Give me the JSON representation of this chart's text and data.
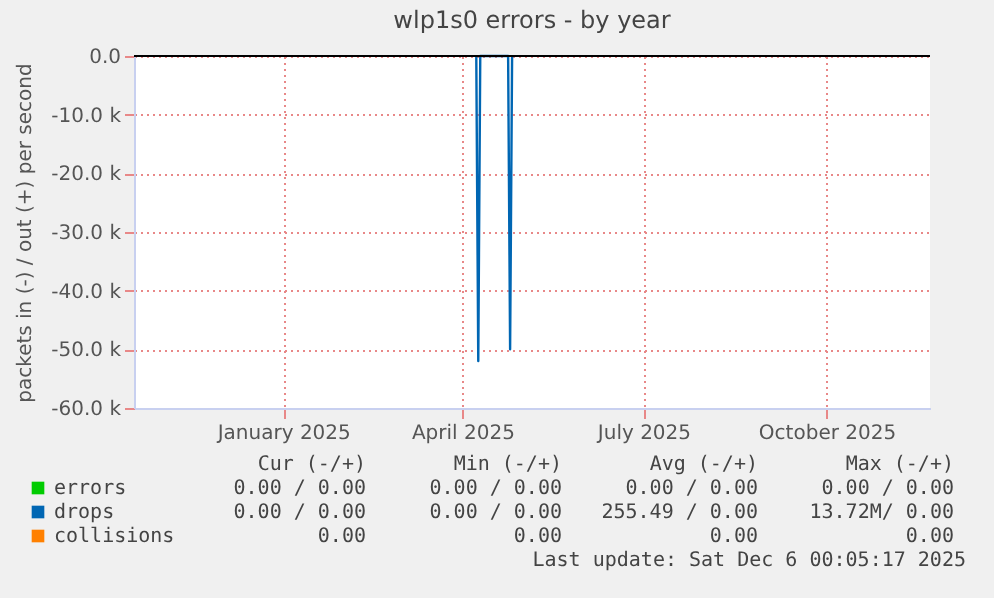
{
  "chart_data": {
    "type": "line",
    "title": "wlp1s0 errors - by year",
    "ylabel": "packets in (-) / out (+) per second",
    "series": [
      {
        "name": "errors",
        "color": "#00cc00"
      },
      {
        "name": "drops",
        "color": "#0066b3",
        "x": [
          "2025-04-22",
          "2025-04-23",
          "2025-04-24",
          "2025-05-08",
          "2025-05-09",
          "2025-05-10"
        ],
        "values": [
          0,
          -52000,
          0,
          0,
          -50000,
          0
        ]
      },
      {
        "name": "collisions",
        "color": "#ff8000"
      }
    ],
    "xlim": [
      "2024-11-01",
      "2025-12-06"
    ],
    "xticks": [
      {
        "value": "2025-01-15",
        "label": "January 2025"
      },
      {
        "value": "2025-04-15",
        "label": "April 2025"
      },
      {
        "value": "2025-07-15",
        "label": "July 2025"
      },
      {
        "value": "2025-10-15",
        "label": "October 2025"
      }
    ],
    "ylim": [
      -60000,
      0
    ],
    "yticks": [
      {
        "value": -60000,
        "label": "-60.0 k"
      },
      {
        "value": -50000,
        "label": "-50.0 k"
      },
      {
        "value": -40000,
        "label": "-40.0 k"
      },
      {
        "value": -30000,
        "label": "-30.0 k"
      },
      {
        "value": -20000,
        "label": "-20.0 k"
      },
      {
        "value": -10000,
        "label": "-10.0 k"
      },
      {
        "value": 0,
        "label": "0.0"
      }
    ],
    "ref_lines": [
      {
        "axis": "y",
        "value": 0,
        "color": "#000000"
      }
    ],
    "grid": true,
    "legend": "bottom",
    "marker": "none",
    "line_style": "solid",
    "annotations": [
      "Cur (-/+)",
      "Min (-/+)",
      "Avg (-/+)",
      "Max (-/+)",
      "0.00 /  0.00",
      "0.00 /  0.00",
      "0.00 /  0.00",
      "0.00 /  0.00",
      "0.00 /  0.00",
      "0.00 /  0.00",
      "255.49 /  0.00",
      "13.72M/  0.00",
      "0.00",
      "0.00",
      "0.00",
      "0.00",
      "Last update: Sat Dec  6 00:05:17 2025"
    ]
  }
}
